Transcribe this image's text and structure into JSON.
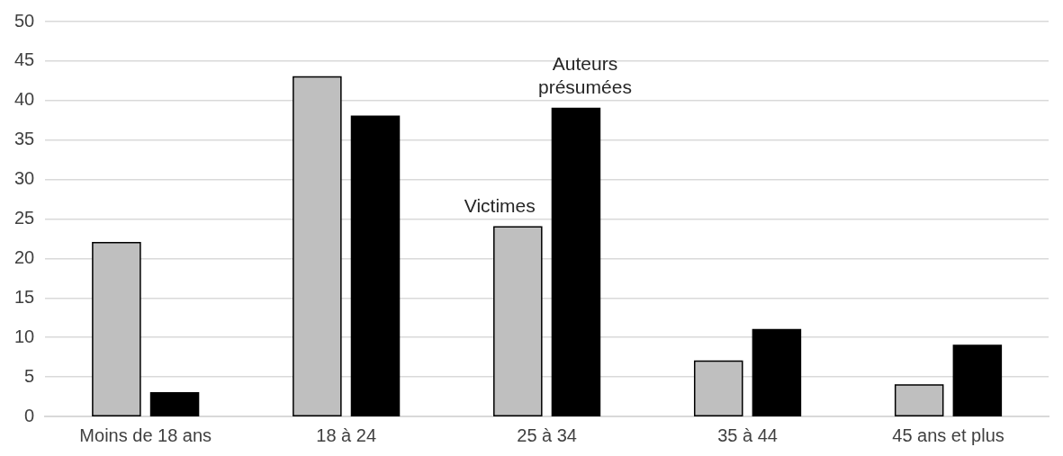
{
  "chart_data": {
    "type": "bar",
    "categories": [
      "Moins de 18 ans",
      "18 à 24",
      "25 à 34",
      "35 à 44",
      "45 ans et plus"
    ],
    "series": [
      {
        "name": "Victimes",
        "color": "#bfbfbf",
        "values": [
          22,
          43,
          24,
          7,
          4
        ]
      },
      {
        "name": "Auteurs présumées",
        "color": "#000000",
        "values": [
          3,
          38,
          39,
          11,
          9
        ]
      }
    ],
    "ylim": [
      0,
      50
    ],
    "yticks": [
      0,
      5,
      10,
      15,
      20,
      25,
      30,
      35,
      40,
      45,
      50
    ],
    "grid": "y",
    "legend": false
  }
}
